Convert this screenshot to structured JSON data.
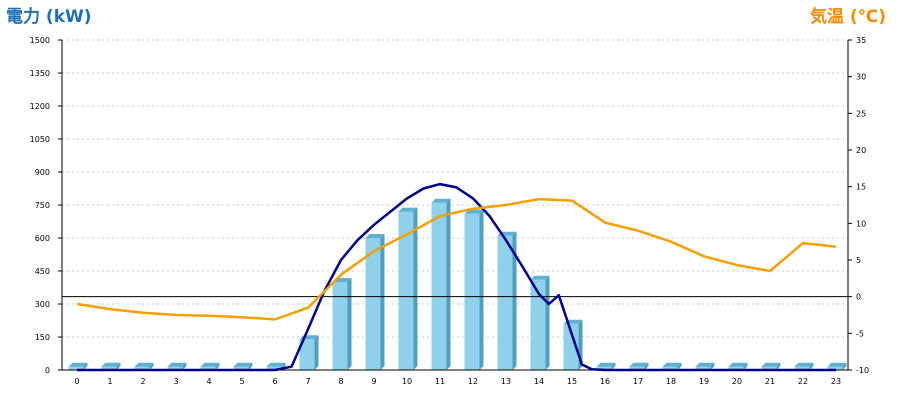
{
  "chart_data": {
    "type": "bar",
    "colors": {
      "left_axis_title": "#1f6fb5",
      "right_axis_title": "#f28c00",
      "bar_front": "#8fd0ea",
      "bar_side": "#4f9fbf",
      "bar_top": "#5fb0d3",
      "power_line": "#00008b",
      "temp_line": "#f5a000",
      "grid": "#c8c8c8"
    },
    "left_axis": {
      "title": "電力 (kW)",
      "ylim": [
        0,
        1500
      ],
      "ticks": [
        "0",
        "150",
        "300",
        "450",
        "600",
        "750",
        "900",
        "1050",
        "1200",
        "1350",
        "1500"
      ]
    },
    "right_axis": {
      "title": "気温 (℃)",
      "ylim": [
        -10,
        35
      ],
      "ticks": [
        "-10",
        "-5",
        "0",
        "5",
        "10",
        "15",
        "20",
        "25",
        "30",
        "35"
      ]
    },
    "categories": [
      "0",
      "1",
      "2",
      "3",
      "4",
      "5",
      "6",
      "7",
      "8",
      "9",
      "10",
      "11",
      "12",
      "13",
      "14",
      "15",
      "16",
      "17",
      "18",
      "19",
      "20",
      "21",
      "22",
      "23"
    ],
    "grid": "horizontal-dashed",
    "series": [
      {
        "type": "bar",
        "axis": "left",
        "values": [
          15,
          15,
          15,
          15,
          15,
          15,
          15,
          140,
          400,
          600,
          720,
          760,
          710,
          610,
          410,
          210,
          15,
          15,
          15,
          15,
          15,
          15,
          15,
          15
        ]
      },
      {
        "type": "line",
        "axis": "left",
        "x": [
          0,
          6,
          6.5,
          7,
          7.5,
          8,
          8.5,
          9,
          9.5,
          10,
          10.5,
          11,
          11.5,
          12,
          12.5,
          13,
          13.5,
          14,
          14.3,
          14.6,
          15,
          15.3,
          15.6,
          16,
          23
        ],
        "values": [
          0,
          0,
          15,
          185,
          360,
          500,
          590,
          660,
          720,
          780,
          825,
          845,
          830,
          780,
          700,
          590,
          470,
          345,
          300,
          340,
          160,
          25,
          3,
          0,
          0
        ]
      },
      {
        "type": "line",
        "axis": "right",
        "values": [
          -1,
          -1.7,
          -2.2,
          -2.5,
          -2.6,
          -2.8,
          -3.1,
          -1.5,
          3,
          6.2,
          8.5,
          11,
          12,
          12.5,
          13.3,
          13.1,
          10.1,
          9,
          7.5,
          5.5,
          4.3,
          3.5,
          7.3,
          6.8
        ]
      }
    ]
  }
}
